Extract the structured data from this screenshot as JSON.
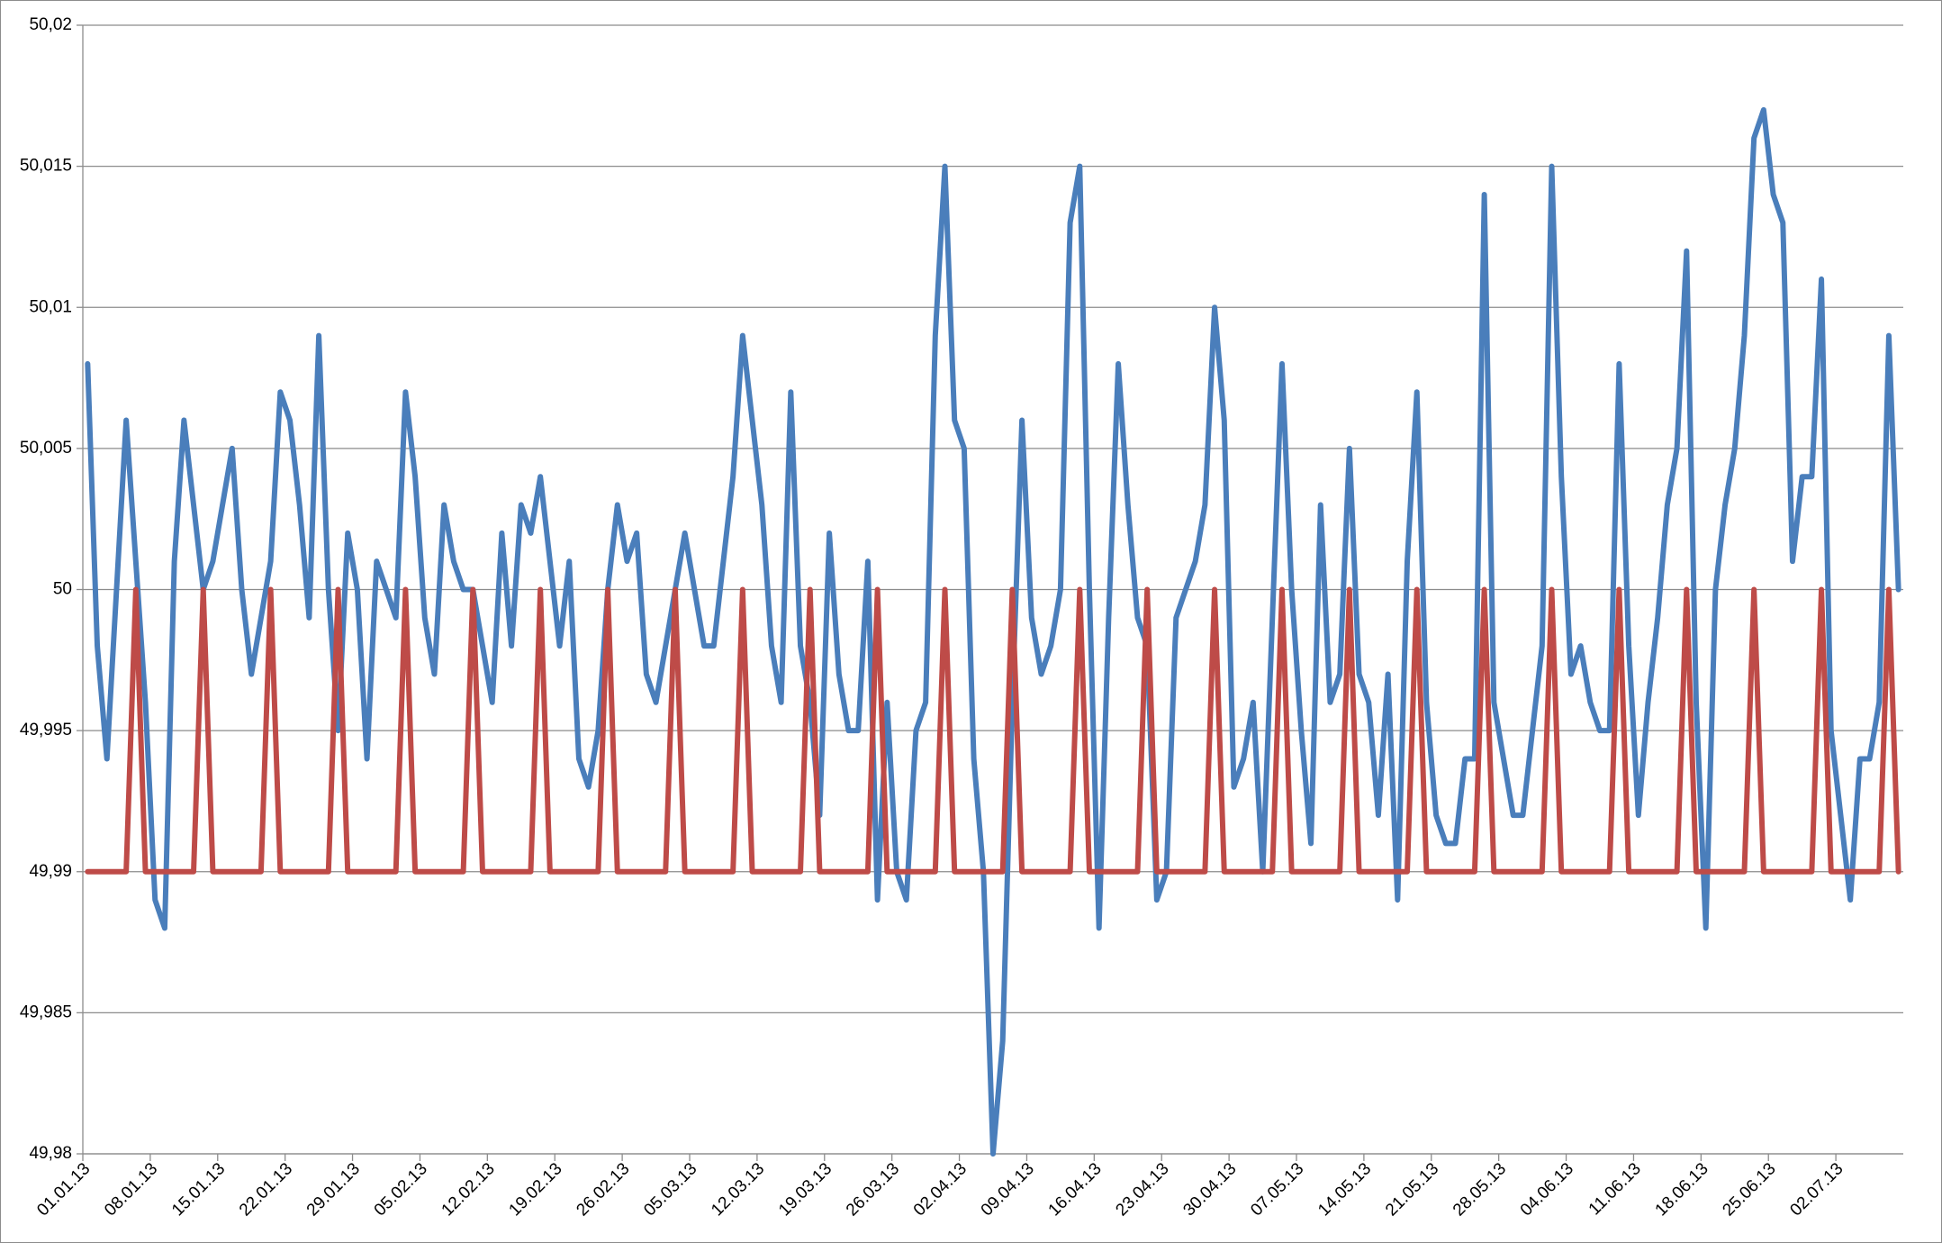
{
  "chart_data": {
    "type": "line",
    "categories": [
      "01.01.13",
      null,
      null,
      null,
      null,
      null,
      null,
      "08.01.13",
      null,
      null,
      null,
      null,
      null,
      null,
      "15.01.13",
      null,
      null,
      null,
      null,
      null,
      null,
      "22.01.13",
      null,
      null,
      null,
      null,
      null,
      null,
      "29.01.13",
      null,
      null,
      null,
      null,
      null,
      null,
      "05.02.13",
      null,
      null,
      null,
      null,
      null,
      null,
      "12.02.13",
      null,
      null,
      null,
      null,
      null,
      null,
      "19.02.13",
      null,
      null,
      null,
      null,
      null,
      null,
      "26.02.13",
      null,
      null,
      null,
      null,
      null,
      null,
      "05.03.13",
      null,
      null,
      null,
      null,
      null,
      null,
      "12.03.13",
      null,
      null,
      null,
      null,
      null,
      null,
      "19.03.13",
      null,
      null,
      null,
      null,
      null,
      null,
      "26.03.13",
      null,
      null,
      null,
      null,
      null,
      null,
      "02.04.13",
      null,
      null,
      null,
      null,
      null,
      null,
      "09.04.13",
      null,
      null,
      null,
      null,
      null,
      null,
      "16.04.13",
      null,
      null,
      null,
      null,
      null,
      null,
      "23.04.13",
      null,
      null,
      null,
      null,
      null,
      null,
      "30.04.13",
      null,
      null,
      null,
      null,
      null,
      null,
      "07.05.13",
      null,
      null,
      null,
      null,
      null,
      null,
      "14.05.13",
      null,
      null,
      null,
      null,
      null,
      null,
      "21.05.13",
      null,
      null,
      null,
      null,
      null,
      null,
      "28.05.13",
      null,
      null,
      null,
      null,
      null,
      null,
      "04.06.13",
      null,
      null,
      null,
      null,
      null,
      null,
      "11.06.13",
      null,
      null,
      null,
      null,
      null,
      null,
      "18.06.13",
      null,
      null,
      null,
      null,
      null,
      null,
      "25.06.13",
      null,
      null,
      null,
      null,
      null,
      null,
      "02.07.13",
      null,
      null,
      null,
      null,
      null,
      null
    ],
    "series": [
      {
        "color": "#4a7ebb",
        "values": [
          50.008,
          49.998,
          49.994,
          50.0,
          50.006,
          50.001,
          49.996,
          49.989,
          49.988,
          50.001,
          50.006,
          50.003,
          50.0,
          50.001,
          50.003,
          50.005,
          50.0,
          49.997,
          49.999,
          50.001,
          50.007,
          50.006,
          50.003,
          49.999,
          50.009,
          50.0,
          49.995,
          50.002,
          50.0,
          49.994,
          50.001,
          50.0,
          49.999,
          50.007,
          50.004,
          49.999,
          49.997,
          50.003,
          50.001,
          50.0,
          50.0,
          49.998,
          49.996,
          50.002,
          49.998,
          50.003,
          50.002,
          50.004,
          50.001,
          49.998,
          50.001,
          49.994,
          49.993,
          49.995,
          50.0,
          50.003,
          50.001,
          50.002,
          49.997,
          49.996,
          49.998,
          50.0,
          50.002,
          50.0,
          49.998,
          49.998,
          50.001,
          50.004,
          50.009,
          50.006,
          50.003,
          49.998,
          49.996,
          50.007,
          49.998,
          49.996,
          49.992,
          50.002,
          49.997,
          49.995,
          49.995,
          50.001,
          49.989,
          49.996,
          49.99,
          49.989,
          49.995,
          49.996,
          50.009,
          50.015,
          50.006,
          50.005,
          49.994,
          49.99,
          49.98,
          49.984,
          49.996,
          50.006,
          49.999,
          49.997,
          49.998,
          50.0,
          50.013,
          50.015,
          50.0,
          49.988,
          49.999,
          50.008,
          50.003,
          49.999,
          49.998,
          49.989,
          49.99,
          49.999,
          50.0,
          50.001,
          50.003,
          50.01,
          50.006,
          49.993,
          49.994,
          49.996,
          49.99,
          49.999,
          50.008,
          50.0,
          49.995,
          49.991,
          50.003,
          49.996,
          49.997,
          50.005,
          49.997,
          49.996,
          49.992,
          49.997,
          49.989,
          50.001,
          50.007,
          49.996,
          49.992,
          49.991,
          49.991,
          49.994,
          49.994,
          50.014,
          49.996,
          49.994,
          49.992,
          49.992,
          49.995,
          49.998,
          50.015,
          50.004,
          49.997,
          49.998,
          49.996,
          49.995,
          49.995,
          50.008,
          49.998,
          49.992,
          49.996,
          49.999,
          50.003,
          50.005,
          50.012,
          49.996,
          49.988,
          50.0,
          50.003,
          50.005,
          50.009,
          50.016,
          50.017,
          50.014,
          50.013,
          50.001,
          50.004,
          50.004,
          50.011,
          49.995,
          49.992,
          49.989,
          49.994,
          49.994,
          49.996,
          50.009,
          50.0
        ]
      },
      {
        "color": "#be4b48",
        "values": [
          49.99,
          49.99,
          49.99,
          49.99,
          49.99,
          50,
          49.99,
          49.99,
          49.99,
          49.99,
          49.99,
          49.99,
          50,
          49.99,
          49.99,
          49.99,
          49.99,
          49.99,
          49.99,
          50,
          49.99,
          49.99,
          49.99,
          49.99,
          49.99,
          49.99,
          50,
          49.99,
          49.99,
          49.99,
          49.99,
          49.99,
          49.99,
          50,
          49.99,
          49.99,
          49.99,
          49.99,
          49.99,
          49.99,
          50,
          49.99,
          49.99,
          49.99,
          49.99,
          49.99,
          49.99,
          50,
          49.99,
          49.99,
          49.99,
          49.99,
          49.99,
          49.99,
          50,
          49.99,
          49.99,
          49.99,
          49.99,
          49.99,
          49.99,
          50,
          49.99,
          49.99,
          49.99,
          49.99,
          49.99,
          49.99,
          50,
          49.99,
          49.99,
          49.99,
          49.99,
          49.99,
          49.99,
          50,
          49.99,
          49.99,
          49.99,
          49.99,
          49.99,
          49.99,
          50,
          49.99,
          49.99,
          49.99,
          49.99,
          49.99,
          49.99,
          50,
          49.99,
          49.99,
          49.99,
          49.99,
          49.99,
          49.99,
          50,
          49.99,
          49.99,
          49.99,
          49.99,
          49.99,
          49.99,
          50,
          49.99,
          49.99,
          49.99,
          49.99,
          49.99,
          49.99,
          50,
          49.99,
          49.99,
          49.99,
          49.99,
          49.99,
          49.99,
          50,
          49.99,
          49.99,
          49.99,
          49.99,
          49.99,
          49.99,
          50,
          49.99,
          49.99,
          49.99,
          49.99,
          49.99,
          49.99,
          50,
          49.99,
          49.99,
          49.99,
          49.99,
          49.99,
          49.99,
          50,
          49.99,
          49.99,
          49.99,
          49.99,
          49.99,
          49.99,
          50,
          49.99,
          49.99,
          49.99,
          49.99,
          49.99,
          49.99,
          50,
          49.99,
          49.99,
          49.99,
          49.99,
          49.99,
          49.99,
          50,
          49.99,
          49.99,
          49.99,
          49.99,
          49.99,
          49.99,
          50,
          49.99,
          49.99,
          49.99,
          49.99,
          49.99,
          49.99,
          50,
          49.99,
          49.99,
          49.99,
          49.99,
          49.99,
          49.99,
          50,
          49.99,
          49.99,
          49.99,
          49.99,
          49.99,
          49.99,
          50,
          49.99
        ]
      }
    ],
    "ylim": [
      49.98,
      50.02
    ],
    "yticks": [
      {
        "value": 49.98,
        "label": "49,98"
      },
      {
        "value": 49.985,
        "label": "49,985"
      },
      {
        "value": 49.99,
        "label": "49,99"
      },
      {
        "value": 49.995,
        "label": "49,995"
      },
      50,
      {
        "value": 50.005,
        "label": "50,005"
      },
      {
        "value": 50.01,
        "label": "50,01"
      },
      {
        "value": 50.015,
        "label": "50,015"
      },
      {
        "value": 50.02,
        "label": "50,02"
      }
    ],
    "grid": true
  }
}
